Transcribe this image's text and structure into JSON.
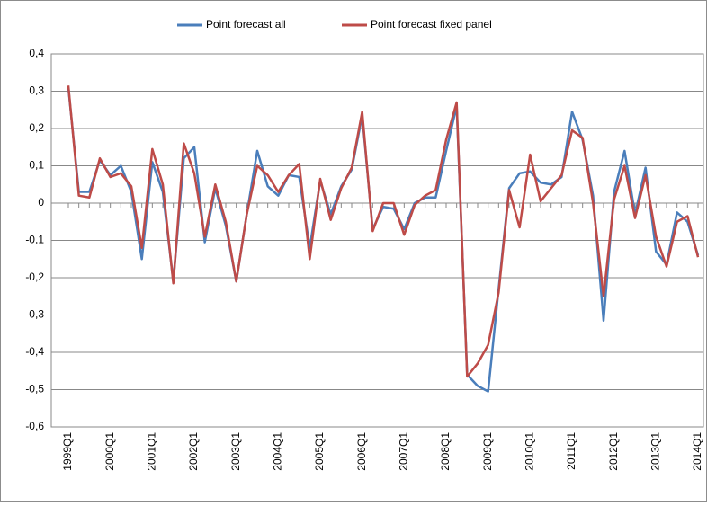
{
  "chart_data": {
    "type": "line",
    "categories": [
      "1999Q1",
      null,
      null,
      null,
      "2000Q1",
      null,
      null,
      null,
      "2001Q1",
      null,
      null,
      null,
      "2002Q1",
      null,
      null,
      null,
      "2003Q1",
      null,
      null,
      null,
      "2004Q1",
      null,
      null,
      null,
      "2005Q1",
      null,
      null,
      null,
      "2006Q1",
      null,
      null,
      null,
      "2007Q1",
      null,
      null,
      null,
      "2008Q1",
      null,
      null,
      null,
      "2009Q1",
      null,
      null,
      null,
      "2010Q1",
      null,
      null,
      null,
      "2011Q1",
      null,
      null,
      null,
      "2012Q1",
      null,
      null,
      null,
      "2013Q1",
      null,
      null,
      null,
      "2014Q1"
    ],
    "series": [
      {
        "name": "Point forecast all",
        "color": "#4a7ebb",
        "values": [
          0.31,
          0.03,
          0.03,
          0.115,
          0.075,
          0.1,
          0.03,
          -0.15,
          0.11,
          0.03,
          -0.21,
          0.12,
          0.15,
          -0.105,
          0.04,
          -0.06,
          -0.21,
          -0.03,
          0.14,
          0.045,
          0.02,
          0.075,
          0.07,
          -0.12,
          0.06,
          -0.03,
          0.045,
          0.09,
          0.235,
          -0.07,
          -0.01,
          -0.015,
          -0.07,
          0,
          0.015,
          0.015,
          0.14,
          0.26,
          -0.46,
          -0.49,
          -0.505,
          -0.23,
          0.04,
          0.08,
          0.085,
          0.055,
          0.05,
          0.07,
          0.245,
          0.17,
          0.02,
          -0.315,
          0.03,
          0.14,
          -0.03,
          0.095,
          -0.13,
          -0.165,
          -0.025,
          -0.05,
          -0.14
        ]
      },
      {
        "name": "Point forecast fixed panel",
        "color": "#be4b48",
        "values": [
          0.315,
          0.02,
          0.015,
          0.12,
          0.07,
          0.08,
          0.045,
          -0.12,
          0.145,
          0.05,
          -0.215,
          0.16,
          0.08,
          -0.09,
          0.05,
          -0.05,
          -0.21,
          -0.03,
          0.1,
          0.075,
          0.03,
          0.075,
          0.105,
          -0.15,
          0.065,
          -0.045,
          0.04,
          0.095,
          0.245,
          -0.075,
          0,
          0,
          -0.085,
          -0.005,
          0.02,
          0.035,
          0.17,
          0.27,
          -0.465,
          -0.43,
          -0.38,
          -0.24,
          0.035,
          -0.065,
          0.13,
          0.005,
          0.04,
          0.075,
          0.195,
          0.175,
          0,
          -0.25,
          0.01,
          0.1,
          -0.04,
          0.075,
          -0.09,
          -0.17,
          -0.05,
          -0.035,
          -0.145
        ]
      }
    ],
    "ylim": [
      -0.6,
      0.4
    ],
    "yticks": [
      {
        "value": -0.6,
        "label": "-0,6"
      },
      {
        "value": -0.5,
        "label": "-0,5"
      },
      {
        "value": -0.4,
        "label": "-0,4"
      },
      {
        "value": -0.3,
        "label": "-0,3"
      },
      {
        "value": -0.2,
        "label": "-0,2"
      },
      {
        "value": -0.1,
        "label": "-0,1"
      },
      0,
      {
        "value": 0.1,
        "label": "0,1"
      },
      {
        "value": 0.2,
        "label": "0,2"
      },
      {
        "value": 0.3,
        "label": "0,3"
      },
      {
        "value": 0.4,
        "label": "0,4"
      }
    ],
    "grid": true,
    "legend": "top"
  }
}
